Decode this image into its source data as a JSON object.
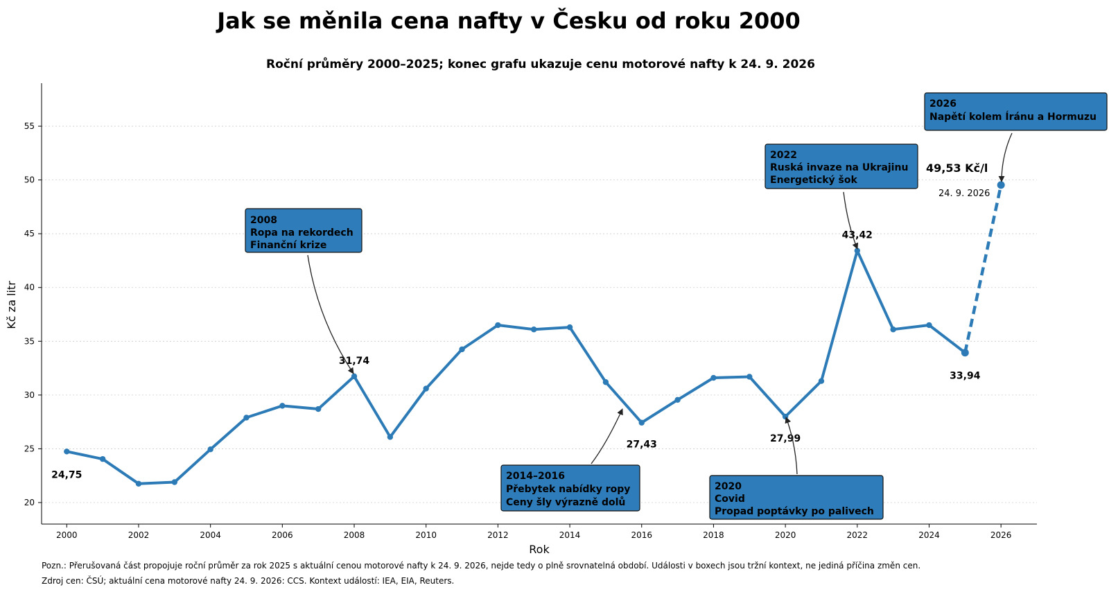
{
  "chart_data": {
    "type": "line",
    "title": "Jak se měnila cena nafty v Česku od roku 2000",
    "subtitle": "Roční průměry 2000–2025; konec grafu ukazuje cenu motorové nafty k 24. 9. 2026",
    "xlabel": "Rok",
    "ylabel": "Kč za litr",
    "xlim": [
      1999.3,
      2027.0
    ],
    "ylim": [
      18,
      59
    ],
    "x_ticks": [
      "2000",
      "2002",
      "2004",
      "2006",
      "2008",
      "2010",
      "2012",
      "2014",
      "2016",
      "2018",
      "2020",
      "2022",
      "2024",
      "2026"
    ],
    "y_ticks": [
      "20",
      "25",
      "30",
      "35",
      "40",
      "45",
      "50",
      "55"
    ],
    "grid": "horizontal dotted",
    "series": [
      {
        "x": [
          2000,
          2001,
          2002,
          2003,
          2004,
          2005,
          2006,
          2007,
          2008,
          2009,
          2010,
          2011,
          2012,
          2013,
          2014,
          2015,
          2016,
          2017,
          2018,
          2019,
          2020,
          2021,
          2022,
          2023,
          2024,
          2025
        ],
        "y": [
          24.75,
          24.05,
          21.75,
          21.9,
          24.95,
          27.9,
          29.0,
          28.7,
          31.74,
          26.1,
          30.6,
          34.25,
          36.5,
          36.1,
          36.3,
          31.2,
          27.43,
          29.55,
          31.6,
          31.7,
          27.99,
          31.3,
          43.42,
          36.1,
          36.5,
          33.94
        ],
        "color": "#2c7bb6"
      }
    ],
    "dashed_segment": {
      "x": [
        2025,
        2026
      ],
      "y": [
        33.94,
        49.53
      ],
      "color": "#2c7bb6"
    },
    "point_labels": [
      {
        "x": 2000,
        "y": 24.75,
        "text": "24,75"
      },
      {
        "x": 2008,
        "y": 31.74,
        "text": "31,74"
      },
      {
        "x": 2016,
        "y": 27.43,
        "text": "27,43"
      },
      {
        "x": 2020,
        "y": 27.99,
        "text": "27,99"
      },
      {
        "x": 2022,
        "y": 43.42,
        "text": "43,42"
      },
      {
        "x": 2025,
        "y": 33.94,
        "text": "33,94"
      }
    ],
    "end_label": {
      "value": "49,53 Kč/l",
      "date": "24. 9. 2026"
    },
    "annotations": [
      {
        "lines": [
          "2008",
          "Ropa na rekordech",
          "Finanční krize"
        ]
      },
      {
        "lines": [
          "2014–2016",
          "Přebytek nabídky ropy",
          "Ceny šly výrazně dolů"
        ]
      },
      {
        "lines": [
          "2020",
          "Covid",
          "Propad poptávky po palivech"
        ]
      },
      {
        "lines": [
          "2022",
          "Ruská invaze na Ukrajinu",
          "Energetický šok"
        ]
      },
      {
        "lines": [
          "2026",
          "Napětí kolem Íránu a Hormuzu"
        ]
      }
    ]
  },
  "footer": {
    "note": "Pozn.: Přerušovaná část propojuje roční průměr za rok 2025 s aktuální cenou motorové nafty k 24. 9. 2026, nejde tedy o plně srovnatelná období. Události v boxech jsou tržní kontext, ne jediná příčina změn cen.",
    "source": "Zdroj cen: ČSÚ; aktuální cena motorové nafty 24. 9. 2026: CCS. Kontext událostí: IEA, EIA, Reuters."
  }
}
